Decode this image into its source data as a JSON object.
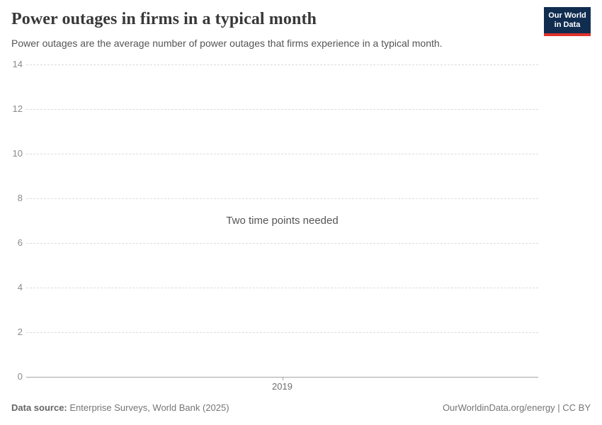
{
  "header": {
    "title": "Power outages in firms in a typical month",
    "subtitle": "Power outages are the average number of power outages that firms experience in a typical month.",
    "logo": {
      "line1": "Our World",
      "line2": "in Data",
      "bg_color": "#102d50",
      "bar_color": "#e0332d"
    }
  },
  "chart_data": {
    "type": "line",
    "title": "Power outages in firms in a typical month",
    "series": [],
    "message": "Two time points needed",
    "xticks": [
      "2019"
    ],
    "yticks": [
      0,
      2,
      4,
      6,
      8,
      10,
      12,
      14
    ],
    "ylim": [
      0,
      14
    ],
    "grid": true,
    "gridline_color": "#dcdcdc",
    "axis_color": "#a5a5a5"
  },
  "footer": {
    "datasource_label": "Data source:",
    "datasource_value": "Enterprise Surveys, World Bank (2025)",
    "attribution": "OurWorldinData.org/energy | CC BY"
  }
}
